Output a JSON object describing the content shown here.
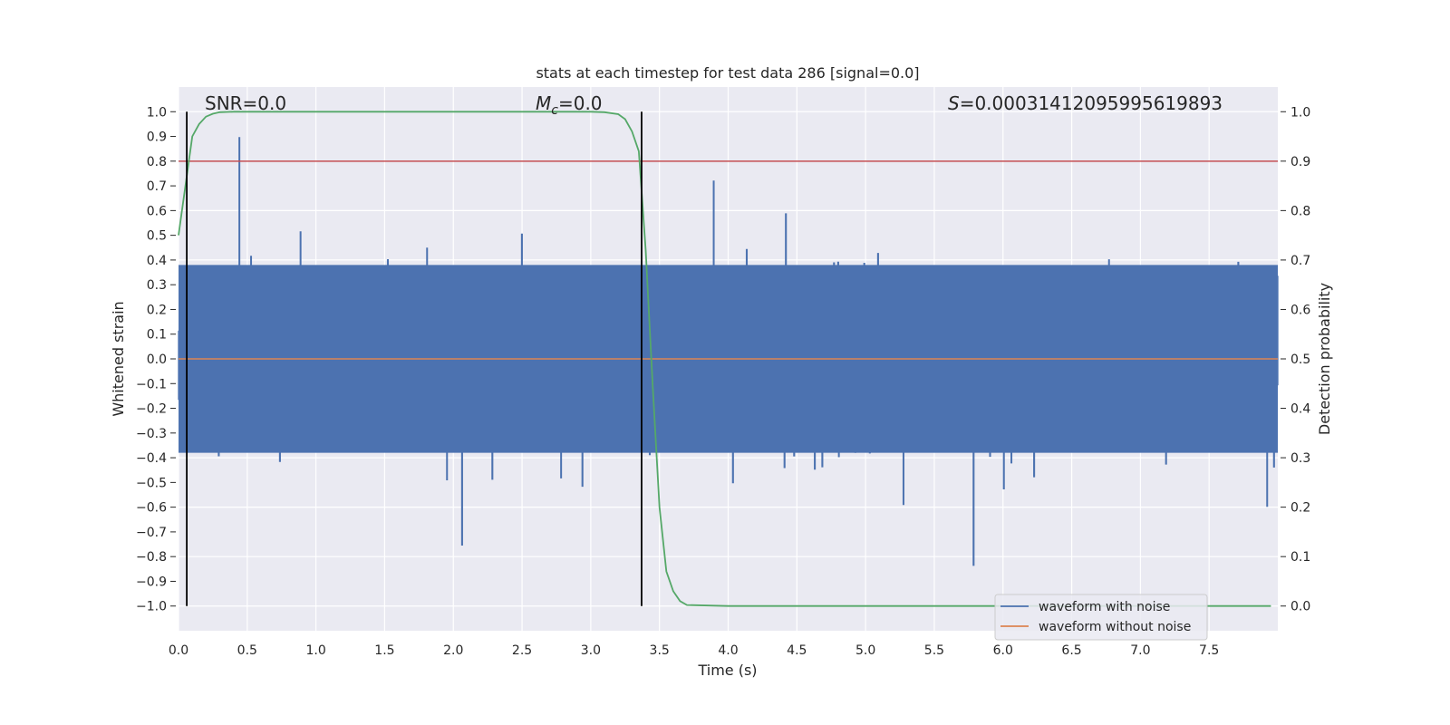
{
  "chart_data": {
    "type": "line",
    "title": "stats at each timestep for test data 286 [signal=0.0]",
    "xlabel": "Time (s)",
    "ylabel": "Whitened strain",
    "y2label": "Detection probability",
    "xlim": [
      0.0,
      8.0
    ],
    "ylim": [
      -1.1,
      1.1
    ],
    "y2lim": [
      -0.05,
      1.05
    ],
    "xticks": [
      0.0,
      0.5,
      1.0,
      1.5,
      2.0,
      2.5,
      3.0,
      3.5,
      4.0,
      4.5,
      5.0,
      5.5,
      6.0,
      6.5,
      7.0,
      7.5
    ],
    "xtick_labels": [
      "0.0",
      "0.5",
      "1.0",
      "1.5",
      "2.0",
      "2.5",
      "3.0",
      "3.5",
      "4.0",
      "4.5",
      "5.0",
      "5.5",
      "6.0",
      "6.5",
      "7.0",
      "7.5"
    ],
    "yticks": [
      1.0,
      0.9,
      0.8,
      0.7,
      0.6,
      0.5,
      0.4,
      0.3,
      0.2,
      0.1,
      0.0,
      -0.1,
      -0.2,
      -0.3,
      -0.4,
      -0.5,
      -0.6,
      -0.7,
      -0.8,
      -0.9,
      -1.0
    ],
    "ytick_labels": [
      "1.0",
      "0.9",
      "0.8",
      "0.7",
      "0.6",
      "0.5",
      "0.4",
      "0.3",
      "0.2",
      "0.1",
      "0.0",
      "−0.1",
      "−0.2",
      "−0.3",
      "−0.4",
      "−0.5",
      "−0.6",
      "−0.7",
      "−0.8",
      "−0.9",
      "−1.0"
    ],
    "y2ticks": [
      1.0,
      0.9,
      0.8,
      0.7,
      0.6,
      0.5,
      0.4,
      0.3,
      0.2,
      0.1,
      0.0
    ],
    "y2tick_labels": [
      "1.0",
      "0.9",
      "0.8",
      "0.7",
      "0.6",
      "0.5",
      "0.4",
      "0.3",
      "0.2",
      "0.1",
      "0.0"
    ],
    "grid": true,
    "series": [
      {
        "name": "waveform with noise",
        "axis": "left",
        "color": "#4c72b0",
        "kind": "noise",
        "samples": 1600,
        "seed": 286,
        "spike_max": 1.0,
        "spike_min": -1.0
      },
      {
        "name": "waveform without noise",
        "axis": "left",
        "color": "#dd8452",
        "x": [
          0.0,
          8.0
        ],
        "y": [
          0.0,
          0.0
        ]
      },
      {
        "name": "detection probability",
        "axis": "right",
        "color": "#55a868",
        "x": [
          0.0,
          0.05,
          0.1,
          0.15,
          0.2,
          0.25,
          0.3,
          0.4,
          0.6,
          1.0,
          2.0,
          3.0,
          3.1,
          3.2,
          3.25,
          3.3,
          3.35,
          3.4,
          3.45,
          3.5,
          3.55,
          3.6,
          3.65,
          3.7,
          4.0,
          5.0,
          6.0,
          7.0,
          7.95
        ],
        "y": [
          0.75,
          0.85,
          0.95,
          0.975,
          0.99,
          0.996,
          0.999,
          1.0,
          1.0,
          1.0,
          1.0,
          1.0,
          0.999,
          0.995,
          0.985,
          0.96,
          0.92,
          0.72,
          0.45,
          0.2,
          0.07,
          0.03,
          0.01,
          0.002,
          0.0,
          0.0,
          0.0,
          0.0,
          0.0
        ]
      },
      {
        "name": "threshold",
        "axis": "right",
        "color": "#c44e52",
        "x": [
          0.0,
          8.0
        ],
        "y": [
          0.9,
          0.9
        ]
      }
    ],
    "vlines": [
      0.06,
      3.37
    ],
    "vline_range": [
      -1.0,
      1.0
    ],
    "annotations": [
      {
        "text": "SNR=0.0"
      },
      {
        "text": "M",
        "sub": "c",
        "suffix": "=0.0"
      },
      {
        "text": "S",
        "suffix": "=0.00031412095995619893"
      }
    ],
    "legend": {
      "placement": "lower-right",
      "entries": [
        "waveform with noise",
        "waveform without noise"
      ]
    },
    "colors": {
      "background": "#eaeaf2",
      "grid": "#ffffff",
      "noise": "#4c72b0",
      "clean": "#dd8452",
      "probability": "#55a868",
      "threshold": "#c44e52",
      "vline": "#000000"
    }
  }
}
